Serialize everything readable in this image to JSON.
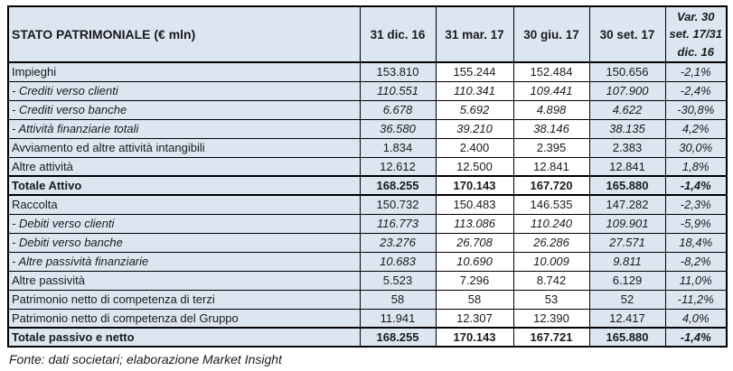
{
  "table": {
    "title": "STATO PATRIMONIALE (€ mln)",
    "columns": [
      "31 dic. 16",
      "31 mar. 17",
      "30 giu. 17",
      "30 set. 17",
      "Var. 30 set. 17/31 dic. 16"
    ],
    "rows": [
      {
        "label": "Impieghi",
        "style": "normal",
        "values": [
          "153.810",
          "155.244",
          "152.484",
          "150.656",
          "-2,1%"
        ]
      },
      {
        "label": "- Crediti verso clienti",
        "style": "italic",
        "values": [
          "110.551",
          "110.341",
          "109.441",
          "107.900",
          "-2,4%"
        ]
      },
      {
        "label": "- Crediti verso banche",
        "style": "italic",
        "values": [
          "6.678",
          "5.692",
          "4.898",
          "4.622",
          "-30,8%"
        ]
      },
      {
        "label": "- Attività finanziarie totali",
        "style": "italic",
        "values": [
          "36.580",
          "39.210",
          "38.146",
          "38.135",
          "4,2%"
        ]
      },
      {
        "label": "Avviamento ed altre attività intangibili",
        "style": "normal",
        "values": [
          "1.834",
          "2.400",
          "2.395",
          "2.383",
          "30,0%"
        ]
      },
      {
        "label": "Altre attività",
        "style": "normal",
        "values": [
          "12.612",
          "12.500",
          "12.841",
          "12.841",
          "1,8%"
        ]
      },
      {
        "label": "Totale Attivo",
        "style": "bold",
        "values": [
          "168.255",
          "170.143",
          "167.720",
          "165.880",
          "-1,4%"
        ]
      },
      {
        "label": "Raccolta",
        "style": "normal",
        "values": [
          "150.732",
          "150.483",
          "146.535",
          "147.282",
          "-2,3%"
        ]
      },
      {
        "label": "- Debiti verso clienti",
        "style": "italic",
        "values": [
          "116.773",
          "113.086",
          "110.240",
          "109.901",
          "-5,9%"
        ]
      },
      {
        "label": "- Debiti verso banche",
        "style": "italic",
        "values": [
          "23.276",
          "26.708",
          "26.286",
          "27.571",
          "18,4%"
        ]
      },
      {
        "label": "- Altre passività finanziarie",
        "style": "italic",
        "values": [
          "10.683",
          "10.690",
          "10.009",
          "9.811",
          "-8,2%"
        ]
      },
      {
        "label": "Altre passività",
        "style": "normal",
        "values": [
          "5.523",
          "7.296",
          "8.742",
          "6.129",
          "11,0%"
        ]
      },
      {
        "label": "Patrimonio netto di competenza di terzi",
        "style": "normal",
        "values": [
          "58",
          "58",
          "53",
          "52",
          "-11,2%"
        ]
      },
      {
        "label": "Patrimonio netto di competenza del Gruppo",
        "style": "normal",
        "values": [
          "11.941",
          "12.307",
          "12.390",
          "12.417",
          "4,0%"
        ]
      },
      {
        "label": "Totale passivo e netto",
        "style": "bold",
        "values": [
          "168.255",
          "170.143",
          "167.721",
          "165.880",
          "-1,4%"
        ]
      }
    ],
    "footer": "Fonte: dati societari; elaborazione Market Insight",
    "colors": {
      "cell_blue": "#dce6f1",
      "cell_white": "#ffffff",
      "border": "#000000"
    }
  }
}
